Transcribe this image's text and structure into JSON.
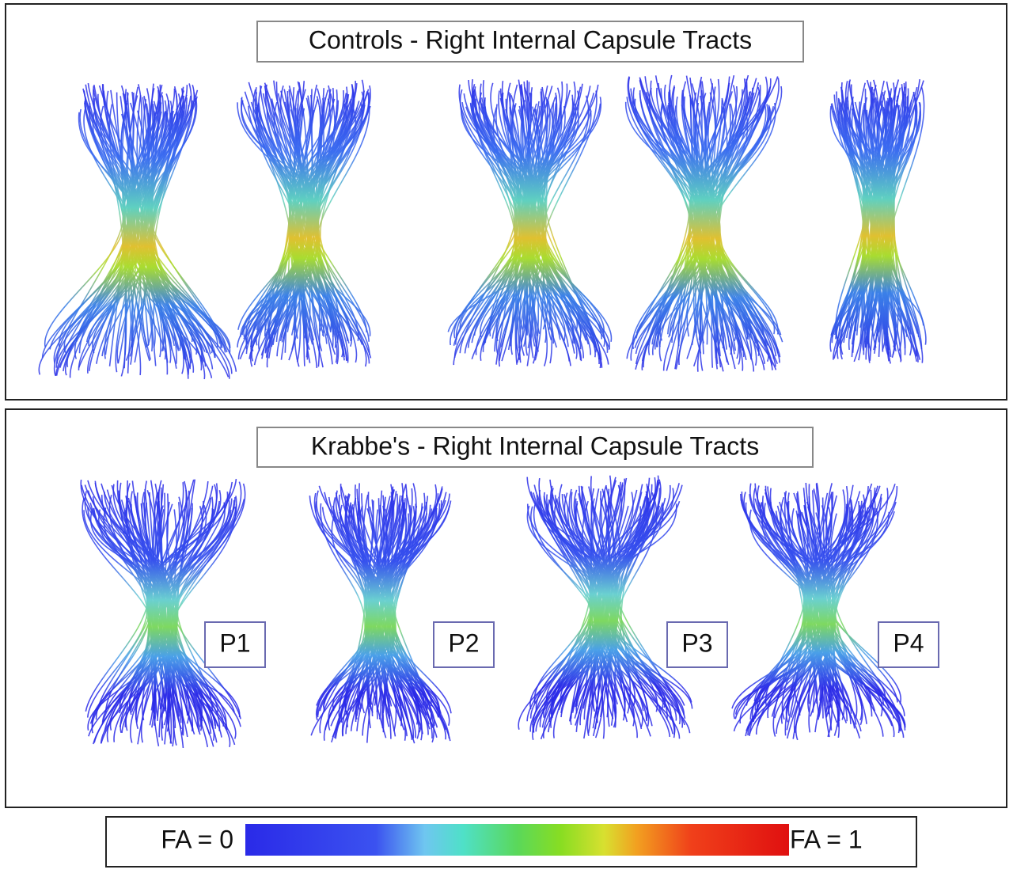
{
  "controls": {
    "title": "Controls - Right Internal Capsule Tracts"
  },
  "patients": {
    "title": "Krabbe's - Right Internal Capsule Tracts",
    "labels": [
      "P1",
      "P2",
      "P3",
      "P4"
    ]
  },
  "colorbar": {
    "min_label": "FA = 0",
    "max_label": "FA = 1"
  }
}
